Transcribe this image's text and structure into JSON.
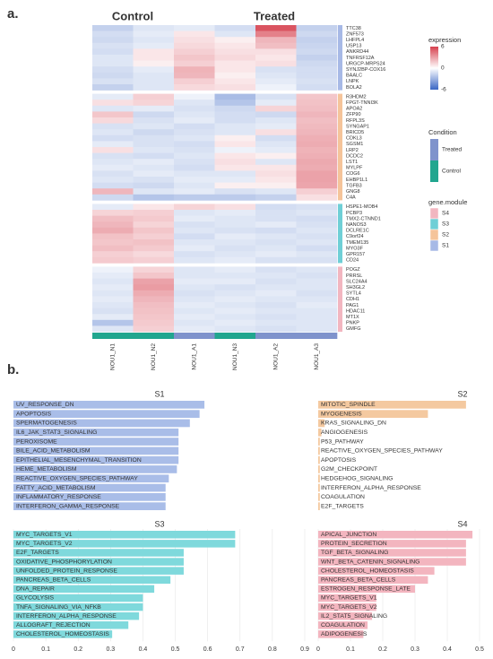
{
  "panel_labels": [
    "a.",
    "b."
  ],
  "chart_data": [
    {
      "type": "heatmap",
      "header_labels": [
        "Control",
        "Treated"
      ],
      "samples": [
        "NOU1_N1",
        "NOU1_N2",
        "NOU1_A1",
        "NOU1_N3",
        "NOU1_A2",
        "NOU1_A3"
      ],
      "sample_condition": [
        "Control",
        "Control",
        "Treated",
        "Control",
        "Treated",
        "Treated"
      ],
      "zlim": [
        -6,
        6
      ],
      "legend": {
        "expression": {
          "title": "expression",
          "ticks": [
            6,
            0,
            -6
          ],
          "colors": [
            "#d6404e",
            "#ffffff",
            "#3a66c4"
          ]
        },
        "condition": {
          "title": "Condition",
          "levels": [
            {
              "name": "Treated",
              "color": "#7f93cc"
            },
            {
              "name": "Control",
              "color": "#21a68f"
            }
          ]
        },
        "module": {
          "title": "gene.module",
          "levels": [
            {
              "name": "S4",
              "color": "#f2b6c0"
            },
            {
              "name": "S3",
              "color": "#6fcfd6"
            },
            {
              "name": "S2",
              "color": "#f5c49a"
            },
            {
              "name": "S1",
              "color": "#a7b9e6"
            }
          ]
        }
      },
      "blocks": [
        {
          "module": "S1",
          "genes": [
            "TTC38",
            "ZNF573",
            "LHFPL4",
            "USP13",
            "ANKRD44",
            "TNFRSF12A",
            "URGCP-MRPS24",
            "SYNJ2BP-COX16",
            "BAALC",
            "LNPK",
            "BOLA2"
          ],
          "values": [
            [
              -0.8,
              -0.3,
              -0.2,
              -0.5,
              5,
              -0.8
            ],
            [
              -0.5,
              -0.2,
              0.2,
              -0.3,
              3,
              -0.6
            ],
            [
              -0.6,
              -0.3,
              0.3,
              0.1,
              1.2,
              -0.8
            ],
            [
              -0.4,
              -0.2,
              0.4,
              0.2,
              1,
              -0.7
            ],
            [
              -0.5,
              0.2,
              0.6,
              0.3,
              0.3,
              -0.6
            ],
            [
              -0.3,
              0.2,
              0.8,
              0.4,
              0.2,
              -0.8
            ],
            [
              -0.3,
              0.1,
              0.6,
              0.2,
              0.3,
              -0.6
            ],
            [
              -0.5,
              -0.2,
              1.3,
              0.2,
              -0.4,
              -0.5
            ],
            [
              -0.6,
              -0.3,
              1.2,
              0.1,
              -0.3,
              -0.5
            ],
            [
              -0.4,
              -0.3,
              0.6,
              0.2,
              -0.2,
              -0.4
            ],
            [
              -0.8,
              -0.3,
              0.4,
              0.3,
              -0.1,
              -0.5
            ]
          ]
        },
        {
          "module": "S2",
          "genes": [
            "R3HDM2",
            "FPGT-TNNI3K",
            "APOA2",
            "ZFP90",
            "RFPL3S",
            "SYNGAP1",
            "BRICD5",
            "CDKL3",
            "SGSM1",
            "LRP2",
            "DCDC2",
            "LST1",
            "MYLPF",
            "COG6",
            "EHBP1L1",
            "TGFB3",
            "GNG8",
            "C4A"
          ],
          "values": [
            [
              -0.2,
              0.6,
              -0.1,
              -1.5,
              -0.4,
              0.8
            ],
            [
              0.3,
              0.5,
              -0.3,
              -1.2,
              -0.2,
              0.9
            ],
            [
              -0.3,
              -0.2,
              -0.4,
              -0.6,
              0.5,
              1
            ],
            [
              0.8,
              -0.6,
              -0.3,
              -0.5,
              -0.6,
              1.2
            ],
            [
              0.4,
              -0.4,
              -0.2,
              -0.5,
              -0.3,
              1
            ],
            [
              -0.4,
              -0.3,
              -0.5,
              -0.3,
              -0.2,
              1.1
            ],
            [
              -0.3,
              -0.6,
              -0.4,
              -0.3,
              0.3,
              1.2
            ],
            [
              -0.5,
              -0.4,
              -0.3,
              0.1,
              -0.5,
              1.4
            ],
            [
              -0.2,
              -0.4,
              -0.5,
              0.2,
              -0.3,
              1.5
            ],
            [
              0.3,
              -0.3,
              -0.4,
              -0.1,
              -0.2,
              1.3
            ],
            [
              -0.4,
              -0.5,
              -0.3,
              0.2,
              0.1,
              1.4
            ],
            [
              -0.3,
              -0.2,
              -0.4,
              0.3,
              -0.3,
              1.6
            ],
            [
              -0.2,
              -0.3,
              -0.5,
              0.2,
              0.2,
              1.5
            ],
            [
              -0.4,
              -0.2,
              -0.3,
              -0.3,
              0.3,
              1.8
            ],
            [
              -0.3,
              -0.4,
              -0.2,
              -0.2,
              0.2,
              1.8
            ],
            [
              -0.5,
              -0.6,
              -0.3,
              0.1,
              0.1,
              1.7
            ],
            [
              1.2,
              -0.3,
              -0.2,
              -0.4,
              -0.3,
              0.6
            ],
            [
              -0.6,
              -1.2,
              -1,
              -1,
              -0.8,
              0.3
            ]
          ]
        },
        {
          "module": "S3",
          "genes": [
            "HSPE1-MOB4",
            "PCBP3",
            "TMX2-CTNND1",
            "NANOS3",
            "DCLRE1C",
            "C9orf24",
            "TMEM135",
            "MYO3F",
            "GPR157",
            "CD24"
          ],
          "values": [
            [
              -0.2,
              0.2,
              0.5,
              0.3,
              -0.5,
              -0.4
            ],
            [
              0.5,
              0.6,
              -0.3,
              -0.2,
              -0.4,
              -0.3
            ],
            [
              1,
              0.7,
              -0.2,
              -0.3,
              -0.4,
              -0.5
            ],
            [
              1.2,
              0.5,
              -0.4,
              -0.3,
              -0.2,
              -0.4
            ],
            [
              1.5,
              0.8,
              -0.3,
              -0.4,
              -0.5,
              -0.3
            ],
            [
              0.9,
              0.6,
              -0.5,
              -0.2,
              -0.3,
              -0.4
            ],
            [
              0.8,
              0.9,
              -0.3,
              -0.3,
              -0.4,
              -0.3
            ],
            [
              1,
              0.7,
              -0.2,
              -0.4,
              -0.3,
              -0.5
            ],
            [
              0.6,
              0.4,
              -0.4,
              -0.3,
              -0.2,
              -0.3
            ],
            [
              0.7,
              0.6,
              -0.3,
              -0.2,
              -0.4,
              -0.4
            ]
          ]
        },
        {
          "module": "S4",
          "genes": [
            "POGZ",
            "PRRSL",
            "SLC24A4",
            "SH3GL2",
            "SYTL4",
            "CDH1",
            "PAG1",
            "HDAC11",
            "MT1X",
            "PNKP",
            "GMFG"
          ],
          "values": [
            [
              -0.1,
              0.5,
              -0.3,
              -0.2,
              -0.4,
              -0.3
            ],
            [
              -0.2,
              0.8,
              -0.3,
              -0.3,
              -0.3,
              -0.4
            ],
            [
              -0.3,
              1.8,
              -0.2,
              -0.2,
              -0.4,
              -0.3
            ],
            [
              -0.2,
              2,
              -0.3,
              -0.4,
              -0.3,
              -0.3
            ],
            [
              -0.3,
              1.5,
              -0.4,
              -0.3,
              -0.2,
              -0.4
            ],
            [
              -0.2,
              1.2,
              -0.3,
              -0.2,
              -0.3,
              -0.3
            ],
            [
              -0.3,
              1,
              -0.2,
              -0.3,
              -0.4,
              -0.2
            ],
            [
              -0.4,
              0.9,
              -0.3,
              -0.2,
              -0.3,
              -0.3
            ],
            [
              -0.2,
              0.8,
              -0.2,
              -0.3,
              -0.4,
              -0.3
            ],
            [
              -1.2,
              0.7,
              -0.3,
              -0.2,
              -0.3,
              -0.3
            ],
            [
              -0.3,
              0.6,
              -0.2,
              -0.3,
              -0.4,
              -0.3
            ]
          ]
        }
      ]
    },
    {
      "type": "bar",
      "orientation": "horizontal",
      "title": "S1",
      "color": "#a9bde8",
      "xlim": [
        0,
        0.9
      ],
      "categories": [
        "UV_RESPONSE_DN",
        "APOPTOSIS",
        "SPERMATOGENESIS",
        "IL6_JAK_STAT3_SIGNALING",
        "PEROXISOME",
        "BILE_ACID_METABOLISM",
        "EPITHELIAL_MESENCHYMAL_TRANSITION",
        "HEME_METABOLISM",
        "REACTIVE_OXYGEN_SPECIES_PATHWAY",
        "FATTY_ACID_METABOLISM",
        "INFLAMMATORY_RESPONSE",
        "INTERFERON_GAMMA_RESPONSE"
      ],
      "values": [
        0.59,
        0.575,
        0.545,
        0.51,
        0.51,
        0.51,
        0.51,
        0.505,
        0.48,
        0.47,
        0.47,
        0.47
      ]
    },
    {
      "type": "bar",
      "orientation": "horizontal",
      "title": "S2",
      "color": "#f4c9a0",
      "xlim": [
        0,
        0.5
      ],
      "categories": [
        "MITOTIC_SPINDLE",
        "MYOGENESIS",
        "KRAS_SIGNALING_DN",
        "ANGIOGENESIS",
        "P53_PATHWAY",
        "REACTIVE_OXYGEN_SPECIES_PATHWAY",
        "APOPTOSIS",
        "G2M_CHECKPOINT",
        "HEDGEHOG_SIGNALING",
        "INTERFERON_ALPHA_RESPONSE",
        "COAGULATION",
        "E2F_TARGETS"
      ],
      "values": [
        0.458,
        0.34,
        0.02,
        0.01,
        0.005,
        0.005,
        0.005,
        0.005,
        0.005,
        0.005,
        0.005,
        0.005
      ]
    },
    {
      "type": "bar",
      "orientation": "horizontal",
      "title": "S3",
      "color": "#7fd9dc",
      "xlim": [
        0,
        0.9
      ],
      "xticks": [
        0,
        0.1,
        0.2,
        0.3,
        0.4,
        0.5,
        0.6,
        0.7,
        0.8,
        0.9
      ],
      "grid": true,
      "categories": [
        "MYC_TARGETS_V1",
        "MYC_TARGETS_V2",
        "E2F_TARGETS",
        "OXIDATIVE_PHOSPHORYLATION",
        "UNFOLDED_PROTEIN_RESPONSE",
        "PANCREAS_BETA_CELLS",
        "DNA_REPAIR",
        "GLYCOLYSIS",
        "TNFA_SIGNALING_VIA_NFKB",
        "INTERFERON_ALPHA_RESPONSE",
        "ALLOGRAFT_REJECTION",
        "CHOLESTEROL_HOMEOSTASIS"
      ],
      "values": [
        0.685,
        0.685,
        0.526,
        0.526,
        0.526,
        0.485,
        0.435,
        0.4,
        0.4,
        0.388,
        0.355,
        0.305
      ]
    },
    {
      "type": "bar",
      "orientation": "horizontal",
      "title": "S4",
      "color": "#f3b5bf",
      "xlim": [
        0,
        0.5
      ],
      "xticks": [
        0,
        0.1,
        0.2,
        0.3,
        0.4,
        0.5
      ],
      "grid": true,
      "categories": [
        "APICAL_JUNCTION",
        "PROTEIN_SECRETION",
        "TGF_BETA_SIGNALING",
        "WNT_BETA_CATENIN_SIGNALING",
        "CHOLESTEROL_HOMEOSTASIS",
        "PANCREAS_BETA_CELLS",
        "ESTROGEN_RESPONSE_LATE",
        "MYC_TARGETS_V1",
        "MYC_TARGETS_V2",
        "IL2_STAT5_SIGNALING",
        "COAGULATION",
        "ADIPOGENESIS"
      ],
      "values": [
        0.478,
        0.458,
        0.458,
        0.458,
        0.36,
        0.34,
        0.3,
        0.18,
        0.18,
        0.167,
        0.153,
        0.14
      ]
    }
  ]
}
